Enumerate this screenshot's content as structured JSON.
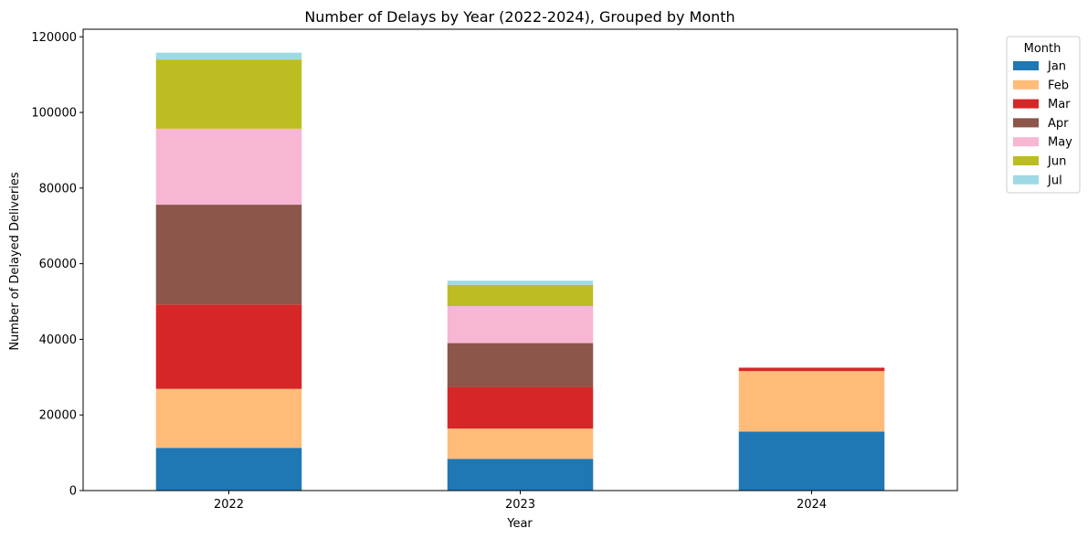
{
  "chart_data": {
    "type": "bar",
    "stacked": true,
    "title": "Number of Delays by Year (2022-2024), Grouped by Month",
    "xlabel": "Year",
    "ylabel": "Number of Delayed Deliveries",
    "categories": [
      "2022",
      "2023",
      "2024"
    ],
    "ylim": [
      0,
      122000
    ],
    "yticks": [
      0,
      20000,
      40000,
      60000,
      80000,
      100000,
      120000
    ],
    "grid": false,
    "legend": {
      "title": "Month",
      "placement": "outside-top-right"
    },
    "series": [
      {
        "name": "Jan",
        "color": "#1f77b4",
        "values": [
          11300,
          8400,
          15600
        ]
      },
      {
        "name": "Feb",
        "color": "#ffbb78",
        "values": [
          15600,
          8000,
          16000
        ]
      },
      {
        "name": "Mar",
        "color": "#d62728",
        "values": [
          22300,
          11000,
          900
        ]
      },
      {
        "name": "Apr",
        "color": "#8c564b",
        "values": [
          26400,
          11600,
          0
        ]
      },
      {
        "name": "May",
        "color": "#f7b6d2",
        "values": [
          20100,
          9800,
          0
        ]
      },
      {
        "name": "Jun",
        "color": "#bcbd22",
        "values": [
          18300,
          5600,
          0
        ]
      },
      {
        "name": "Jul",
        "color": "#9edae5",
        "values": [
          1800,
          1100,
          0
        ]
      }
    ]
  }
}
